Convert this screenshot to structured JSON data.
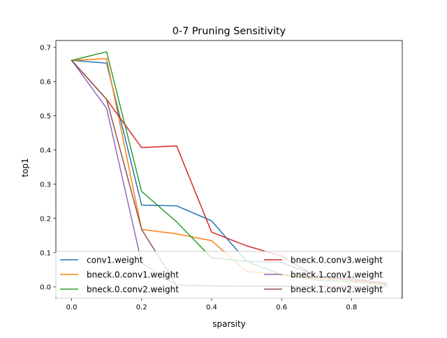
{
  "chart_data": {
    "type": "line",
    "title": "0-7 Pruning Sensitivity",
    "xlabel": "sparsity",
    "ylabel": "top1",
    "xlim": [
      -0.045,
      0.945
    ],
    "ylim": [
      -0.033,
      0.72
    ],
    "xticks": [
      0.0,
      0.2,
      0.4,
      0.6,
      0.8
    ],
    "xtick_labels": [
      "0.0",
      "0.2",
      "0.4",
      "0.6",
      "0.8"
    ],
    "yticks": [
      0.0,
      0.1,
      0.2,
      0.3,
      0.4,
      0.5,
      0.6,
      0.7
    ],
    "ytick_labels": [
      "0.0",
      "0.1",
      "0.2",
      "0.3",
      "0.4",
      "0.5",
      "0.6",
      "0.7"
    ],
    "grid": false,
    "legend_position": "bottom, two columns",
    "x": [
      0.0,
      0.1,
      0.2,
      0.3,
      0.4,
      0.5,
      0.6,
      0.7,
      0.8,
      0.9
    ],
    "series": [
      {
        "name": "conv1.weight",
        "color": "#1f77b4",
        "values": [
          0.662,
          0.654,
          0.239,
          0.237,
          0.193,
          0.075,
          0.072,
          0.032,
          0.025,
          0.01
        ]
      },
      {
        "name": "bneck.0.conv1.weight",
        "color": "#ff7f0e",
        "values": [
          0.662,
          0.667,
          0.168,
          0.155,
          0.135,
          0.045,
          0.037,
          0.025,
          0.02,
          0.008
        ]
      },
      {
        "name": "bneck.0.conv2.weight",
        "color": "#2ca02c",
        "values": [
          0.662,
          0.687,
          0.279,
          0.19,
          0.085,
          0.075,
          0.035,
          0.02,
          0.015,
          0.006
        ]
      },
      {
        "name": "bneck.0.conv3.weight",
        "color": "#d62728",
        "values": [
          0.662,
          0.548,
          0.407,
          0.412,
          0.16,
          0.12,
          0.09,
          0.03,
          0.02,
          0.012
        ]
      },
      {
        "name": "bneck.1.conv1.weight",
        "color": "#9467bd",
        "values": [
          0.662,
          0.522,
          0.07,
          0.005,
          0.003,
          0.002,
          0.002,
          0.001,
          0.001,
          0.001
        ]
      },
      {
        "name": "bneck.1.conv2.weight",
        "color": "#8c564b",
        "values": [
          0.662,
          0.548,
          0.168,
          0.005,
          0.003,
          0.002,
          0.002,
          0.001,
          0.001,
          0.001
        ]
      }
    ]
  }
}
